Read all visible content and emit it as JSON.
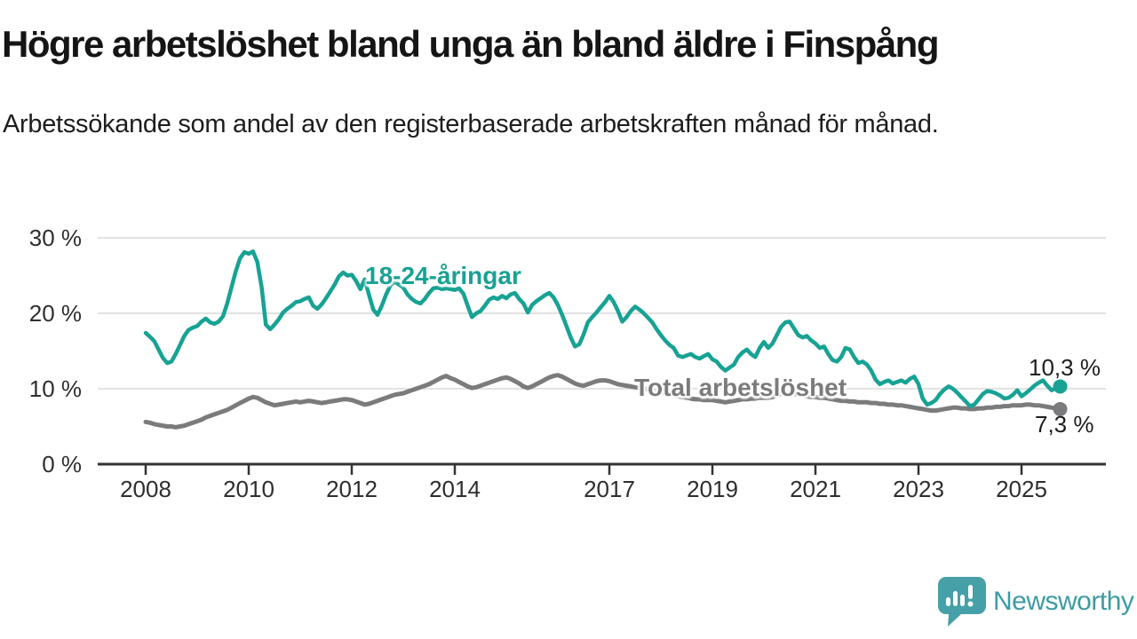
{
  "header": {
    "title": "Högre arbetslöshet bland unga än bland äldre i Finspång",
    "subtitle": "Arbetssökande som andel av den registerbaserade arbetskraften månad för månad."
  },
  "colors": {
    "young_line": "#17a294",
    "total_line": "#7b7b7d",
    "grid": "#d9d9d9",
    "axis": "#333333",
    "tick_text": "#2e2e2e",
    "logo_teal": "#46a0a8"
  },
  "chart_data": {
    "type": "line",
    "title": "Högre arbetslöshet bland unga än bland äldre i Finspång",
    "subtitle": "Arbetssökande som andel av den registerbaserade arbetskraften månad för månad.",
    "unit": "%",
    "grid": "horizontal",
    "legend_position": "inline-labels",
    "x_start": "2008-01",
    "x_end": "2025-10",
    "x_resolution": "monthly",
    "ylim": [
      0,
      30
    ],
    "y_ticks": [
      0,
      10,
      20,
      30
    ],
    "y_tick_labels": [
      "0 %",
      "10 %",
      "20 %",
      "30 %"
    ],
    "x_tick_years": [
      2008,
      2010,
      2012,
      2014,
      2017,
      2019,
      2021,
      2023,
      2025
    ],
    "x_tick_labels": [
      "2008",
      "2010",
      "2012",
      "2014",
      "2017",
      "2019",
      "2021",
      "2023",
      "2025"
    ],
    "series": [
      {
        "name": "18-24-åringar",
        "color": "#17a294",
        "end_label": "10,3 %",
        "end_value": 10.3,
        "values": [
          17.4,
          16.9,
          16.3,
          15.2,
          14.1,
          13.4,
          13.6,
          14.6,
          15.8,
          17.0,
          17.8,
          18.1,
          18.3,
          18.9,
          19.3,
          18.8,
          18.6,
          18.9,
          19.6,
          21.3,
          23.5,
          25.6,
          27.3,
          28.1,
          27.9,
          28.2,
          26.8,
          23.5,
          18.5,
          17.9,
          18.5,
          19.2,
          20.1,
          20.6,
          21.0,
          21.5,
          21.6,
          21.9,
          22.1,
          21.0,
          20.6,
          21.2,
          22.0,
          22.9,
          23.8,
          24.9,
          25.4,
          25.0,
          25.1,
          24.3,
          23.2,
          24.5,
          22.5,
          20.5,
          19.8,
          21.0,
          22.5,
          23.7,
          24.2,
          23.8,
          23.4,
          22.5,
          21.9,
          21.5,
          21.3,
          21.9,
          22.7,
          23.3,
          23.4,
          23.2,
          23.3,
          23.2,
          23.1,
          23.3,
          22.6,
          21.0,
          19.5,
          20.0,
          20.3,
          21.0,
          21.8,
          22.1,
          21.9,
          22.3,
          22.0,
          22.5,
          22.7,
          21.9,
          21.3,
          20.1,
          21.1,
          21.6,
          22.0,
          22.4,
          22.7,
          22.1,
          21.1,
          19.8,
          18.3,
          16.8,
          15.6,
          15.9,
          17.2,
          18.8,
          19.5,
          20.1,
          20.8,
          21.5,
          22.3,
          21.5,
          20.3,
          18.9,
          19.5,
          20.3,
          20.9,
          20.5,
          20.0,
          19.4,
          18.8,
          17.9,
          17.1,
          16.4,
          15.8,
          15.4,
          14.4,
          14.2,
          14.4,
          14.6,
          14.2,
          14.0,
          14.3,
          14.6,
          13.9,
          13.6,
          12.9,
          12.4,
          12.8,
          13.2,
          14.2,
          14.8,
          15.2,
          14.6,
          14.2,
          15.4,
          16.2,
          15.4,
          16.0,
          17.1,
          18.2,
          18.8,
          18.9,
          18.0,
          17.1,
          16.8,
          17.0,
          16.4,
          16.0,
          15.4,
          15.6,
          14.6,
          13.8,
          13.6,
          14.2,
          15.4,
          15.2,
          14.2,
          13.4,
          13.6,
          13.2,
          12.4,
          11.2,
          10.6,
          10.9,
          11.1,
          10.7,
          10.9,
          11.1,
          10.8,
          11.3,
          11.6,
          10.6,
          8.7,
          7.9,
          8.1,
          8.5,
          9.3,
          9.9,
          10.3,
          10.0,
          9.5,
          8.9,
          8.3,
          7.7,
          7.9,
          8.6,
          9.3,
          9.7,
          9.6,
          9.4,
          9.1,
          8.7,
          8.8,
          9.2,
          9.8,
          9.0,
          9.4,
          9.9,
          10.4,
          10.8,
          11.1,
          10.4,
          9.8,
          10.1,
          10.3
        ]
      },
      {
        "name": "Total arbetslöshet",
        "color": "#7b7b7d",
        "end_label": "7,3 %",
        "end_value": 7.3,
        "values": [
          5.6,
          5.5,
          5.3,
          5.2,
          5.1,
          5.0,
          5.0,
          4.9,
          5.0,
          5.1,
          5.3,
          5.5,
          5.7,
          5.9,
          6.2,
          6.4,
          6.6,
          6.8,
          7.0,
          7.2,
          7.5,
          7.8,
          8.1,
          8.4,
          8.7,
          8.9,
          8.8,
          8.5,
          8.2,
          8.0,
          7.8,
          7.9,
          8.0,
          8.1,
          8.2,
          8.3,
          8.2,
          8.3,
          8.4,
          8.3,
          8.2,
          8.1,
          8.2,
          8.3,
          8.4,
          8.5,
          8.6,
          8.6,
          8.5,
          8.3,
          8.1,
          7.9,
          8.0,
          8.2,
          8.4,
          8.6,
          8.8,
          9.0,
          9.2,
          9.3,
          9.4,
          9.6,
          9.8,
          10.0,
          10.2,
          10.4,
          10.6,
          10.9,
          11.2,
          11.5,
          11.7,
          11.4,
          11.2,
          10.9,
          10.6,
          10.3,
          10.1,
          10.2,
          10.4,
          10.6,
          10.8,
          11.0,
          11.2,
          11.4,
          11.5,
          11.3,
          11.0,
          10.7,
          10.3,
          10.1,
          10.3,
          10.6,
          10.9,
          11.2,
          11.5,
          11.7,
          11.8,
          11.6,
          11.3,
          11.0,
          10.7,
          10.5,
          10.4,
          10.6,
          10.8,
          11.0,
          11.1,
          11.1,
          11.0,
          10.8,
          10.6,
          10.5,
          10.4,
          10.3,
          10.2,
          10.1,
          10.0,
          9.9,
          9.8,
          9.7,
          9.6,
          9.4,
          9.3,
          9.1,
          9.0,
          8.9,
          8.8,
          8.7,
          8.6,
          8.6,
          8.5,
          8.5,
          8.5,
          8.4,
          8.3,
          8.2,
          8.3,
          8.4,
          8.5,
          8.6,
          8.6,
          8.7,
          8.7,
          8.8,
          8.8,
          8.8,
          8.9,
          9.1,
          9.3,
          9.4,
          9.4,
          9.3,
          9.2,
          9.1,
          9.0,
          8.9,
          8.9,
          8.8,
          8.8,
          8.7,
          8.6,
          8.5,
          8.4,
          8.4,
          8.3,
          8.3,
          8.2,
          8.2,
          8.2,
          8.1,
          8.1,
          8.0,
          8.0,
          7.9,
          7.9,
          7.8,
          7.8,
          7.7,
          7.6,
          7.5,
          7.4,
          7.3,
          7.2,
          7.1,
          7.1,
          7.2,
          7.3,
          7.4,
          7.5,
          7.5,
          7.4,
          7.4,
          7.3,
          7.3,
          7.4,
          7.4,
          7.5,
          7.5,
          7.6,
          7.6,
          7.7,
          7.7,
          7.8,
          7.8,
          7.8,
          7.9,
          7.9,
          7.8,
          7.8,
          7.7,
          7.6,
          7.5,
          7.4,
          7.3
        ]
      }
    ]
  },
  "branding": {
    "logo_text": "Newsworthy",
    "logo_text_color": "#3d9ba4",
    "logo_bubble_color": "#46a0a8"
  }
}
